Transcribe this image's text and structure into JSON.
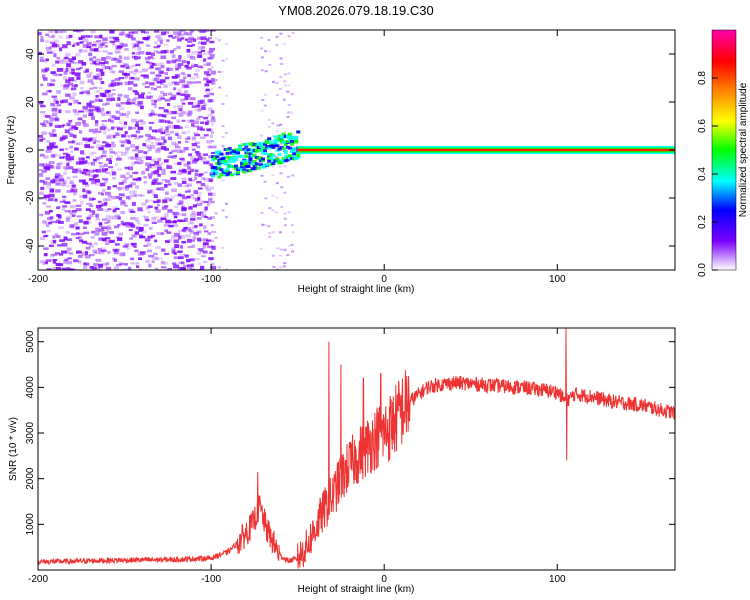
{
  "title": "YM08.2026.079.18.19.C30",
  "chart_data": [
    {
      "type": "heatmap",
      "xlabel": "Height of straight line (km)",
      "ylabel": "Frequency (Hz)",
      "xlim": [
        -200,
        168
      ],
      "ylim": [
        -50,
        50
      ],
      "x_ticks": [
        -200,
        -100,
        0,
        100
      ],
      "x_tick_labels": [
        "-200",
        "-100",
        "0",
        "100"
      ],
      "y_ticks": [
        -40,
        -20,
        0,
        20,
        40
      ],
      "y_tick_labels": [
        "-40",
        "-20",
        "0",
        "20",
        "40"
      ],
      "colorbar": {
        "label": "Normalized spectral amplitude",
        "range": [
          0,
          1
        ],
        "ticks": [
          0,
          0.2,
          0.4,
          0.6,
          0.8
        ],
        "tick_labels": [
          "0.0",
          "0.2",
          "0.4",
          "0.6",
          "0.8"
        ],
        "colormap": [
          "#ffffff",
          "#7b00ff",
          "#0000ff",
          "#00ffff",
          "#00ff00",
          "#ffff00",
          "#ff8000",
          "#ff0000",
          "#ff00aa"
        ]
      },
      "features": {
        "noise_region_km": [
          -200,
          -100
        ],
        "sparse_noise_region_km": [
          -72,
          -53
        ],
        "transition_band_km": [
          -100,
          -50
        ],
        "carrier_line_hz": 0,
        "carrier_start_km": -50
      }
    },
    {
      "type": "line",
      "xlabel": "Height of straight line (km)",
      "ylabel": "SNR (10 * v/v)",
      "xlim": [
        -200,
        168
      ],
      "ylim": [
        0,
        5300
      ],
      "x_ticks": [
        -200,
        -100,
        0,
        100
      ],
      "x_tick_labels": [
        "-200",
        "-100",
        "0",
        "100"
      ],
      "y_ticks": [
        1000,
        2000,
        3000,
        4000,
        5000
      ],
      "y_tick_labels": [
        "1000",
        "2000",
        "3000",
        "4000",
        "5000"
      ],
      "series": [
        {
          "name": "SNR",
          "color": "#ee3333",
          "x": [
            -200,
            -180,
            -160,
            -140,
            -120,
            -100,
            -90,
            -82,
            -76,
            -72,
            -68,
            -64,
            -60,
            -55,
            -50,
            -45,
            -40,
            -35,
            -30,
            -25,
            -20,
            -15,
            -10,
            -5,
            0,
            5,
            10,
            15,
            20,
            25,
            30,
            40,
            50,
            60,
            70,
            80,
            90,
            100,
            105,
            110,
            120,
            130,
            140,
            150,
            160,
            168
          ],
          "values": [
            180,
            190,
            210,
            220,
            230,
            260,
            400,
            700,
            1000,
            1400,
            900,
            600,
            300,
            200,
            250,
            500,
            900,
            1300,
            1600,
            2000,
            2300,
            2500,
            2700,
            2900,
            3000,
            3200,
            3500,
            3700,
            3850,
            4000,
            4050,
            4100,
            4080,
            4050,
            4020,
            4000,
            3950,
            3900,
            3700,
            3850,
            3800,
            3700,
            3650,
            3600,
            3500,
            3450
          ],
          "peaks": [
            {
              "x": -73,
              "value": 2150
            },
            {
              "x": -32,
              "value": 5000
            },
            {
              "x": -25,
              "value": 4500
            },
            {
              "x": -12,
              "value": 4200
            },
            {
              "x": -2,
              "value": 4300
            },
            {
              "x": 105,
              "value": 5300
            },
            {
              "x": 105.5,
              "value": 2400
            }
          ]
        }
      ]
    }
  ]
}
